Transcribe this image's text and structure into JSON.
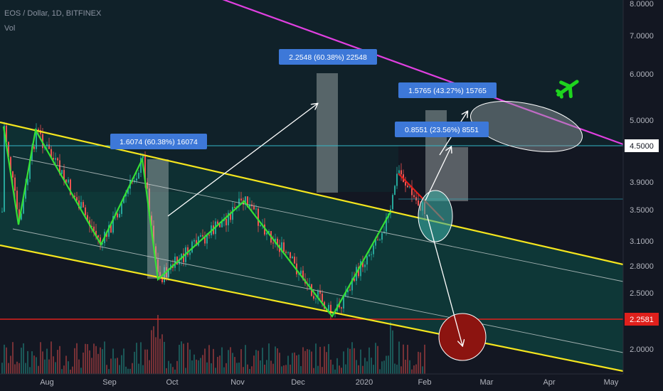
{
  "header": {
    "symbol_line": "EOS / Dollar, 1D, BITFINEX",
    "volume_label": "Vol"
  },
  "colors": {
    "background": "#131722",
    "channel_fill": "#0e3b3a",
    "upper_trend": "#e040e0",
    "yellow_channel": "#f5e61e",
    "green_path": "#35e035",
    "red_level": "#e0201c",
    "cyan_level": "#35b7c8",
    "label_bg": "#3d78d8",
    "candle_up": "#26a69a",
    "candle_down": "#ef5350",
    "airplane": "#1ed41e"
  },
  "airplane_icon": "airplane-icon",
  "chart_data": {
    "type": "candlestick",
    "title": "EOS / Dollar, 1D, BITFINEX",
    "y_axis": {
      "scale": "log",
      "ticks": [
        "8.0000",
        "7.0000",
        "6.0000",
        "5.0000",
        "3.9000",
        "3.5000",
        "3.1000",
        "2.8000",
        "2.5000",
        "2.0000"
      ],
      "tick_values": [
        8.0,
        7.0,
        6.0,
        5.0,
        3.9,
        3.5,
        3.1,
        2.8,
        2.5,
        2.0
      ]
    },
    "x_axis": {
      "ticks": [
        "Aug",
        "Sep",
        "Oct",
        "Nov",
        "Dec",
        "2020",
        "Feb",
        "Mar",
        "Apr",
        "May"
      ]
    },
    "price_labels": [
      {
        "value": "4.5000",
        "role": "resistance level"
      },
      {
        "value": "2.2581",
        "role": "support level"
      }
    ],
    "measure_labels": [
      {
        "text": "2.2548 (60.38%) 22548"
      },
      {
        "text": "1.6074 (60.38%) 16074"
      },
      {
        "text": "1.5765 (43.27%) 15765"
      },
      {
        "text": "0.8551 (23.56%) 8551"
      }
    ],
    "pivots": [
      {
        "date": "Jul 13",
        "price": 4.85
      },
      {
        "date": "Jul 19",
        "price": 3.3
      },
      {
        "date": "Jul 30",
        "price": 4.8
      },
      {
        "date": "Aug 25",
        "price": 3.05
      },
      {
        "date": "Sep 20",
        "price": 4.15
      },
      {
        "date": "Sep 25",
        "price": 2.67
      },
      {
        "date": "Nov 3",
        "price": 3.65
      },
      {
        "date": "Dec 18",
        "price": 2.3
      },
      {
        "date": "Jan 14",
        "price": 3.45
      }
    ]
  }
}
